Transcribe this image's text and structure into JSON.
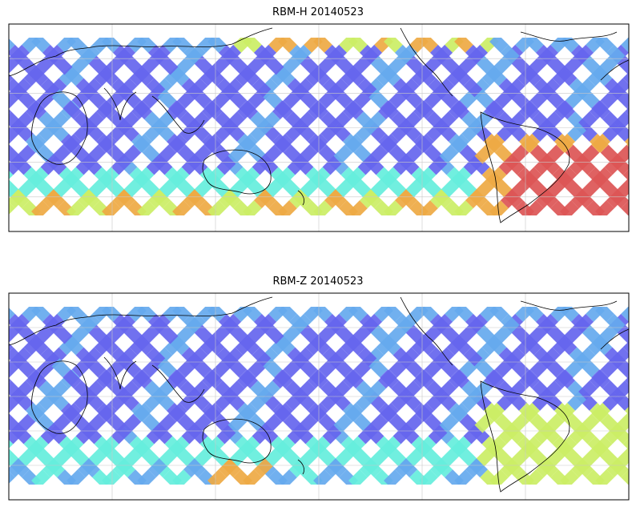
{
  "figure": {
    "panels": [
      {
        "title": "RBM-H 20140523"
      },
      {
        "title": "RBM-Z 20140523"
      }
    ]
  },
  "colors": {
    "low": "#6666ee",
    "mid_low": "#66aaee",
    "mid": "#66eedd",
    "mid_high": "#ccee66",
    "high": "#eeaa44",
    "max": "#dd5555",
    "coastline": "#000000",
    "grid": "#c8c8c8"
  }
}
